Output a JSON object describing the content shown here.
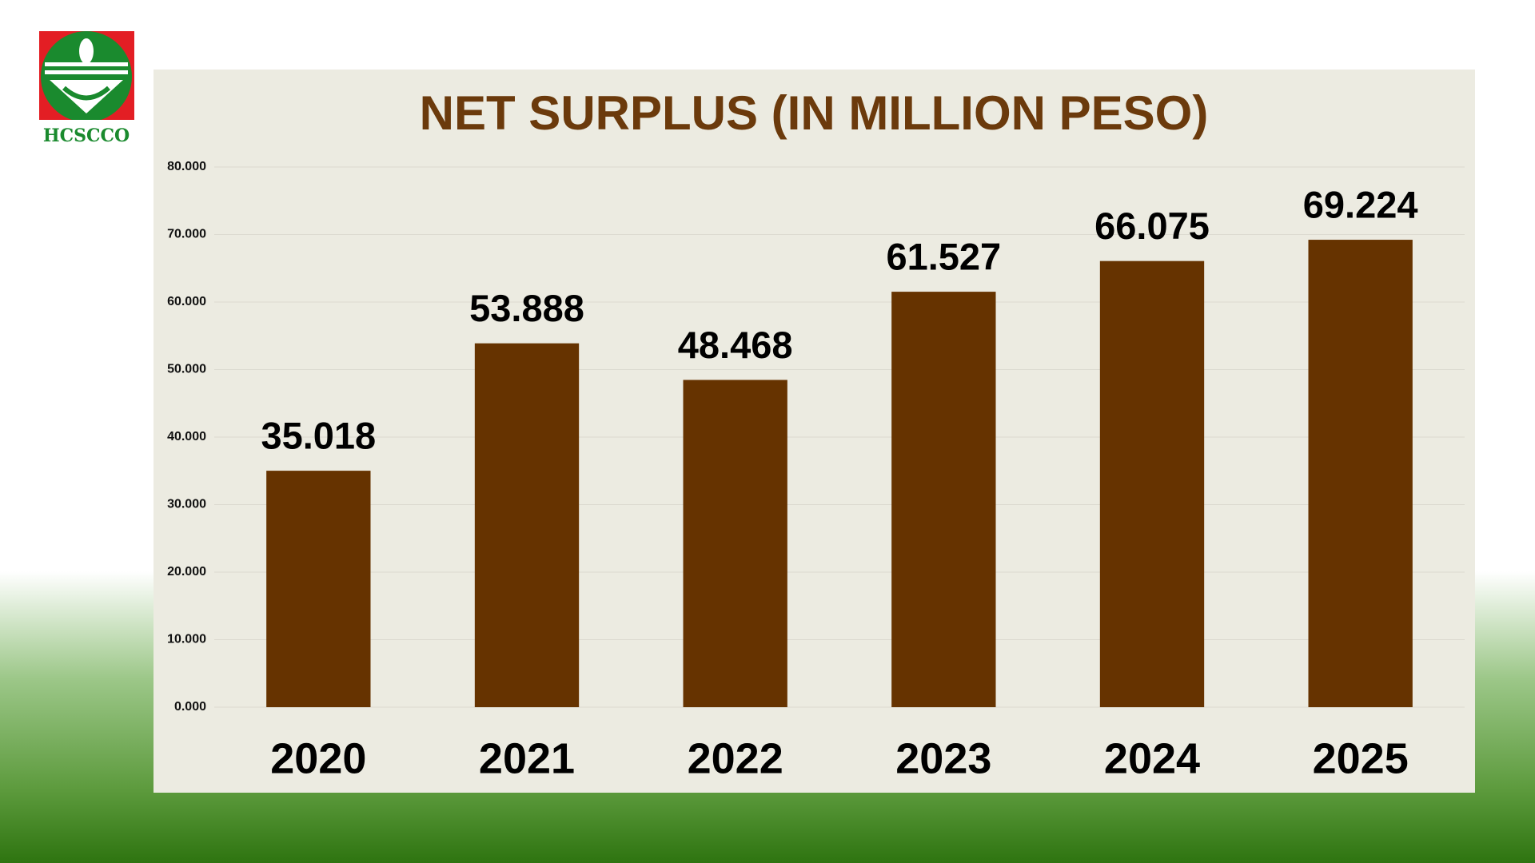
{
  "logo_text": "HCSCCO",
  "chart_data": {
    "type": "bar",
    "title": "NET SURPLUS (IN MILLION PESO)",
    "categories": [
      "2020",
      "2021",
      "2022",
      "2023",
      "2024",
      "2025"
    ],
    "values": [
      35.018,
      53.888,
      48.468,
      61.527,
      66.075,
      69.224
    ],
    "color": "#663300",
    "ylim": [
      0,
      80
    ],
    "yticks": [
      {
        "value": 0,
        "label": "0.000"
      },
      {
        "value": 10,
        "label": "10.000"
      },
      {
        "value": 20,
        "label": "20.000"
      },
      {
        "value": 30,
        "label": "30.000"
      },
      {
        "value": 40,
        "label": "40.000"
      },
      {
        "value": 50,
        "label": "50.000"
      },
      {
        "value": 60,
        "label": "60.000"
      },
      {
        "value": 70,
        "label": "70.000"
      },
      {
        "value": 80,
        "label": "80.000"
      }
    ],
    "grid": true
  }
}
